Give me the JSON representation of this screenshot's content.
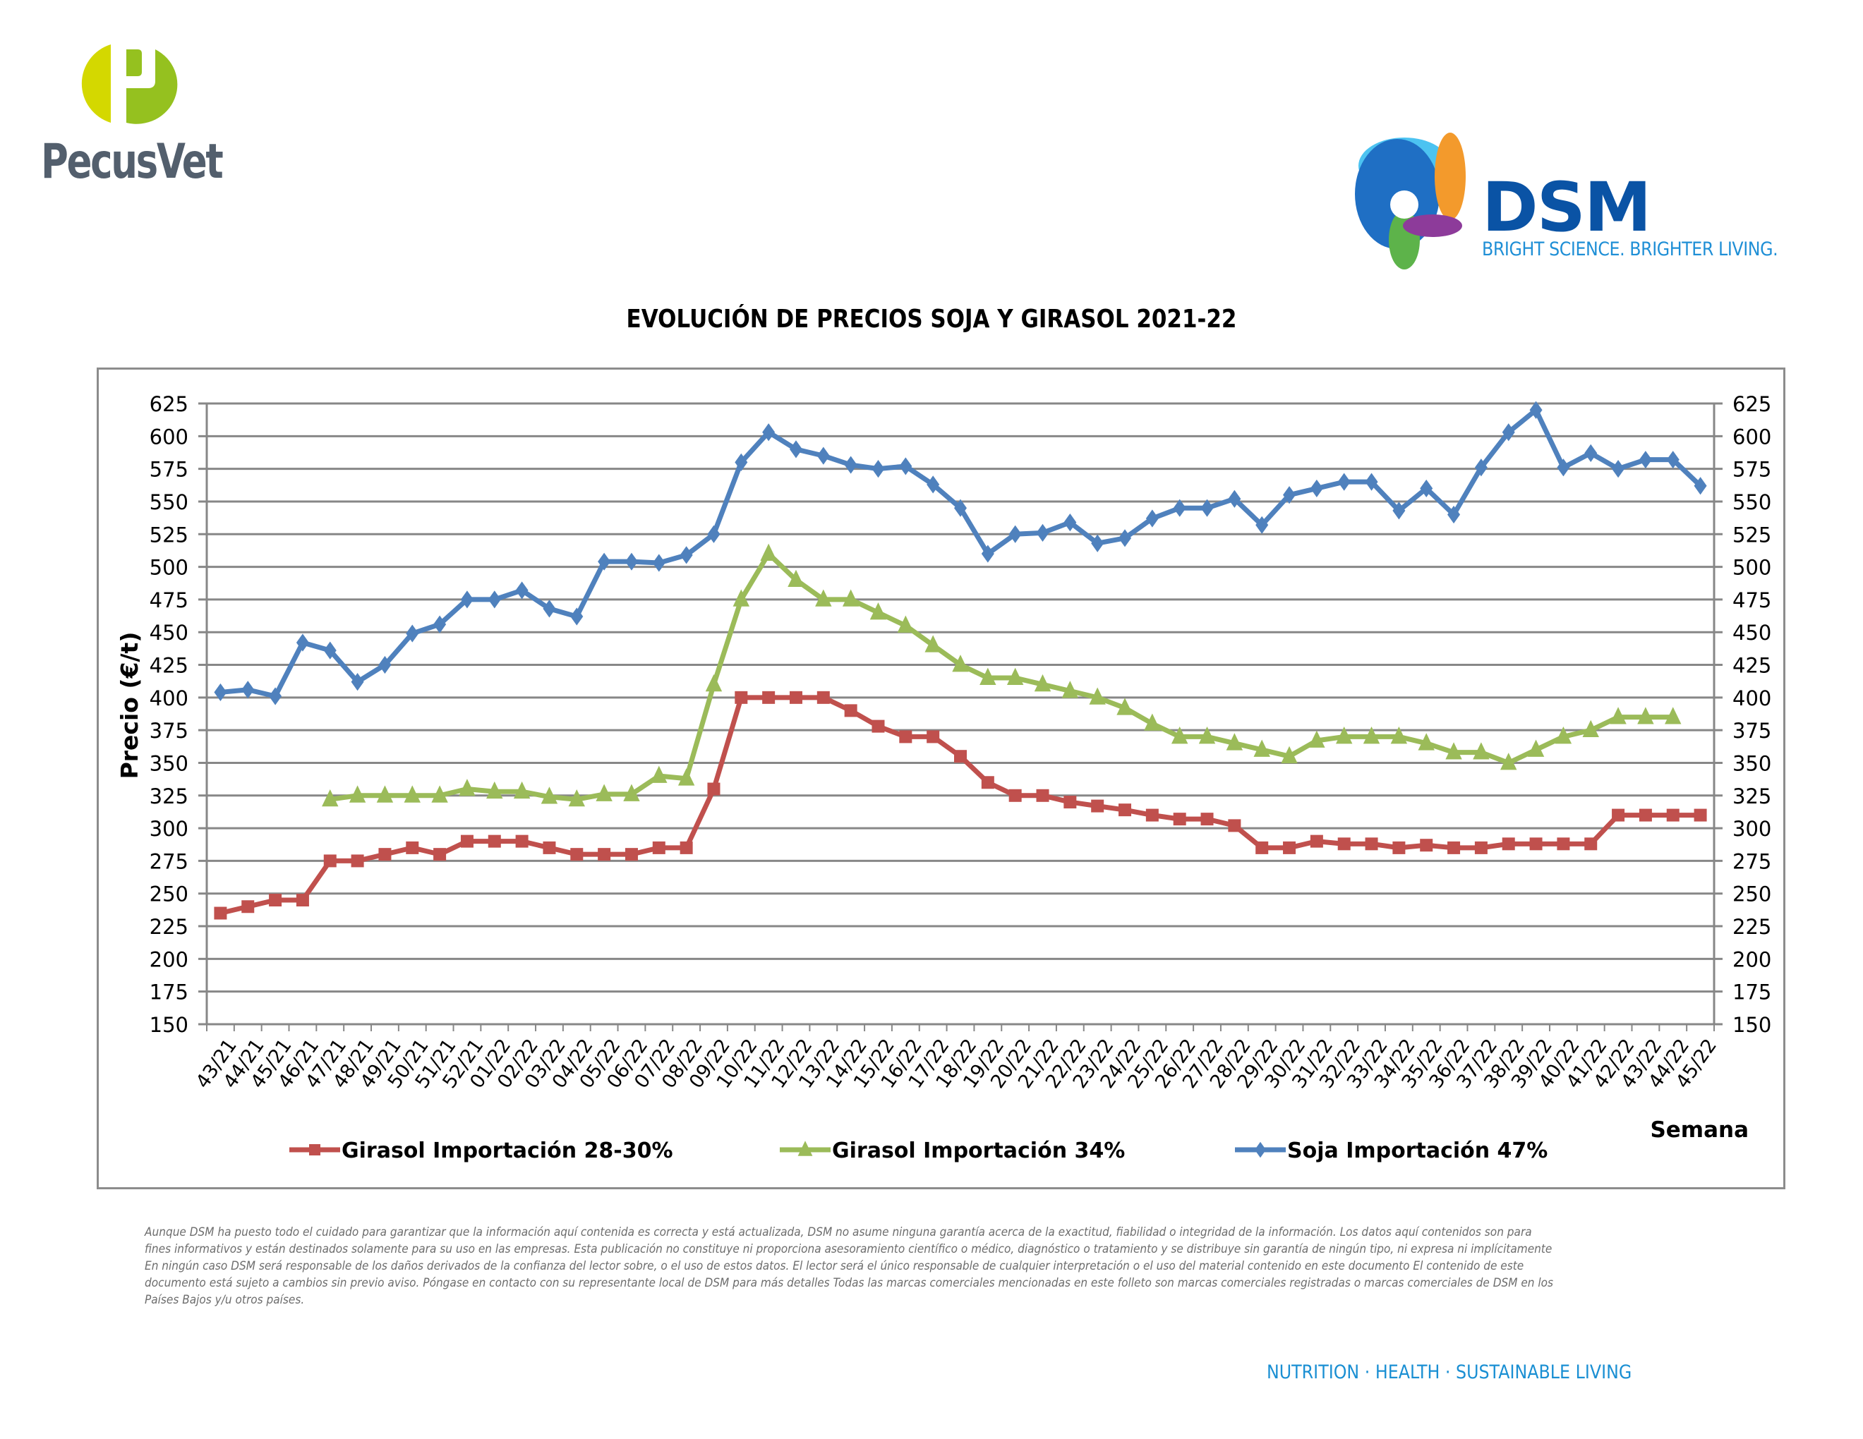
{
  "branding": {
    "left_logo_name": "PecusVet",
    "right_logo_name": "DSM",
    "right_logo_tagline": "BRIGHT SCIENCE. BRIGHTER LIVING.",
    "footer_tagline": "NUTRITION  ·  HEALTH  ·  SUSTAINABLE LIVING",
    "colors": {
      "pecus_green_light": "#d4d800",
      "pecus_green": "#95c11f",
      "pecus_gray": "#535f6d",
      "dsm_blue": "#0a53a5",
      "dsm_light_blue": "#1f8fd6"
    }
  },
  "disclaimer": "Aunque DSM ha puesto todo el cuidado para garantizar que la información aquí contenida es correcta y está actualizada, DSM no asume ninguna garantía acerca de la exactitud, fiabilidad o integridad de la información. Los datos aquí contenidos son para fines informativos y están destinados solamente para su uso en las empresas. Esta publicación no constituye ni proporciona asesoramiento científico o médico, diagnóstico o tratamiento y se distribuye sin garantía de ningún tipo, ni expresa ni implícitamente En ningún caso DSM será responsable de los daños derivados de la confianza del lector sobre, o el uso de estos datos. El lector será el único responsable de cualquier interpretación o el uso del material contenido en este documento El contenido de este documento está sujeto a cambios sin previo aviso. Póngase en contacto con su representante local de DSM para más detalles Todas las marcas comerciales mencionadas en este folleto son marcas comerciales registradas o marcas comerciales de DSM en los Países Bajos y/u otros países.",
  "chart_data": {
    "type": "line",
    "title": "EVOLUCIÓN DE PRECIOS SOJA Y GIRASOL 2021-22",
    "xlabel": "Semana",
    "ylabel": "Precio (€/t)",
    "ylim": [
      150,
      625
    ],
    "y_ticks": [
      150,
      175,
      200,
      225,
      250,
      275,
      300,
      325,
      350,
      375,
      400,
      425,
      450,
      475,
      500,
      525,
      550,
      575,
      600,
      625
    ],
    "secondary_y_axis_mirrored": true,
    "grid": true,
    "legend_position": "bottom",
    "categories": [
      "43/21",
      "44/21",
      "45/21",
      "46/21",
      "47/21",
      "48/21",
      "49/21",
      "50/21",
      "51/21",
      "52/21",
      "01/22",
      "02/22",
      "03/22",
      "04/22",
      "05/22",
      "06/22",
      "07/22",
      "08/22",
      "09/22",
      "10/22",
      "11/22",
      "12/22",
      "13/22",
      "14/22",
      "15/22",
      "16/22",
      "17/22",
      "18/22",
      "19/22",
      "20/22",
      "21/22",
      "22/22",
      "23/22",
      "24/22",
      "25/22",
      "26/22",
      "27/22",
      "28/22",
      "29/22",
      "30/22",
      "31/22",
      "32/22",
      "33/22",
      "34/22",
      "35/22",
      "36/22",
      "37/22",
      "38/22",
      "39/22",
      "40/22",
      "41/22",
      "42/22",
      "43/22",
      "44/22",
      "45/22"
    ],
    "series": [
      {
        "name": "Girasol Importación 28-30%",
        "color": "#c0504d",
        "marker": "square",
        "values": [
          235,
          240,
          245,
          245,
          275,
          275,
          280,
          285,
          280,
          290,
          290,
          290,
          285,
          280,
          280,
          280,
          285,
          285,
          330,
          400,
          400,
          400,
          400,
          390,
          378,
          370,
          370,
          355,
          335,
          325,
          325,
          320,
          317,
          314,
          310,
          307,
          307,
          302,
          285,
          285,
          290,
          288,
          288,
          285,
          287,
          285,
          285,
          288,
          288,
          288,
          288,
          310,
          310,
          310,
          310
        ]
      },
      {
        "name": "Girasol Importación 34%",
        "color": "#9bbb59",
        "marker": "triangle",
        "values": [
          null,
          null,
          null,
          null,
          322,
          325,
          325,
          325,
          325,
          330,
          328,
          328,
          324,
          322,
          326,
          326,
          340,
          338,
          410,
          475,
          510,
          490,
          475,
          475,
          465,
          455,
          440,
          425,
          415,
          415,
          410,
          405,
          400,
          392,
          380,
          370,
          370,
          365,
          360,
          355,
          367,
          370,
          370,
          370,
          365,
          358,
          358,
          350,
          360,
          370,
          375,
          385,
          385,
          385,
          null
        ]
      },
      {
        "name": "Soja Importación 47%",
        "color": "#4f81bd",
        "marker": "diamond",
        "values": [
          404,
          406,
          401,
          442,
          436,
          412,
          425,
          449,
          456,
          475,
          475,
          482,
          468,
          462,
          504,
          504,
          503,
          509,
          525,
          580,
          603,
          590,
          585,
          578,
          575,
          577,
          563,
          545,
          510,
          525,
          526,
          534,
          518,
          522,
          537,
          545,
          545,
          552,
          532,
          555,
          560,
          565,
          565,
          543,
          560,
          540,
          576,
          603,
          620,
          576,
          587,
          575,
          582,
          582,
          562
        ]
      }
    ]
  }
}
